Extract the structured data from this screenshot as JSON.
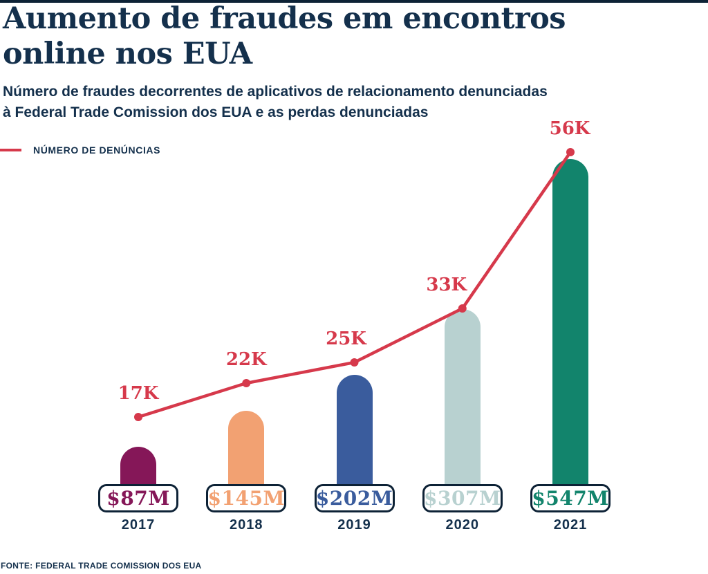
{
  "header": {
    "title_line1": "Aumento de fraudes em encontros",
    "title_line2": "online nos EUA",
    "subtitle_line1": "Número de fraudes decorrentes de aplicativos de relacionamento denunciadas",
    "subtitle_line2": "à Federal Trade Comission dos EUA e as perdas denunciadas"
  },
  "legend": {
    "label": "NÚMERO DE DENÚNCIAS",
    "swatch_color": "#D6394B"
  },
  "footer": {
    "source": "FONTE: FEDERAL TRADE COMISSION DOS EUA"
  },
  "colors": {
    "text_navy": "#14304C",
    "axis_navy": "#0D2236",
    "line_red": "#D6394B",
    "background": "#ffffff"
  },
  "chart_data": {
    "type": "bar",
    "subtype": "bar-and-line-combo",
    "title": "Aumento de fraudes em encontros online nos EUA",
    "categories": [
      "2017",
      "2018",
      "2019",
      "2020",
      "2021"
    ],
    "series": [
      {
        "name": "NÚMERO DE DENÚNCIAS",
        "type": "line",
        "unit": "thousand reports",
        "values": [
          17,
          22,
          25,
          33,
          56
        ],
        "point_labels": [
          "17K",
          "22K",
          "25K",
          "33K",
          "56K"
        ],
        "color": "#D6394B"
      },
      {
        "name": "PERDAS DENUNCIADAS",
        "type": "bar",
        "unit": "million USD",
        "values": [
          87,
          145,
          202,
          307,
          547
        ],
        "point_labels": [
          "$87M",
          "$145M",
          "$202M",
          "$307M",
          "$547M"
        ],
        "bar_colors": [
          "#851758",
          "#F2A172",
          "#3A5C9D",
          "#B8D1D0",
          "#12846C"
        ]
      }
    ],
    "legend_position": "top-left",
    "grid": false,
    "axis": "single shared baseline, no y-axis ticks shown"
  }
}
